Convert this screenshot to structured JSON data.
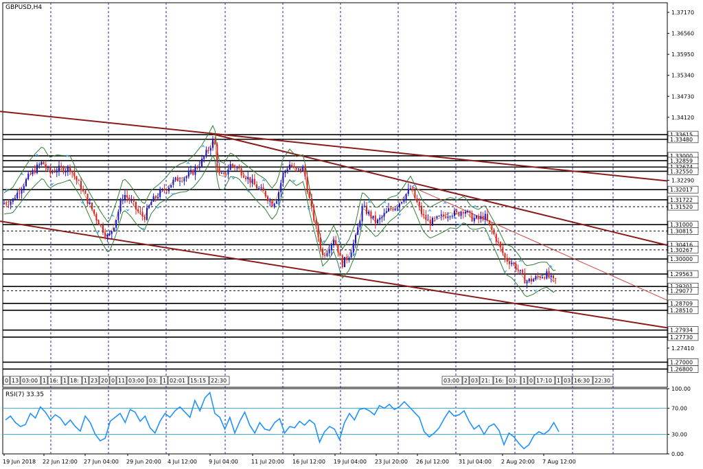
{
  "chart_data": {
    "type": "candlestick",
    "title": "GBPUSD,H4",
    "price_axis": {
      "range": [
        1.2665,
        1.3745
      ],
      "ticks": [
        "1.37170",
        "1.36560",
        "1.35950",
        "1.35340",
        "1.34730",
        "1.34120",
        "1.33480",
        "1.32290",
        "1.31722",
        "1.31520",
        "1.31000",
        "1.30815",
        "1.30416",
        "1.30267",
        "1.30000",
        "1.29563",
        "1.29201",
        "1.28709",
        "1.28510",
        "1.27934",
        "1.27730",
        "1.27410",
        "1.27000",
        "1.26800"
      ]
    },
    "x_axis_labels": [
      "19 Jun 2018",
      "22 Jun 12:00",
      "27 Jun 04:00",
      "29 Jun 20:00",
      "4 Jul 12:00",
      "9 Jul 04:00",
      "11 Jul 20:00",
      "16 Jul 12:00",
      "19 Jul 04:00",
      "23 Jul 20:00",
      "26 Jul 12:00",
      "31 Jul 04:00",
      "2 Aug 20:00",
      "7 Aug 12:00"
    ],
    "price_path": [
      [
        0,
        1.3188
      ],
      [
        4,
        1.316
      ],
      [
        10,
        1.3165
      ],
      [
        18,
        1.317
      ],
      [
        30,
        1.3205
      ],
      [
        42,
        1.324
      ],
      [
        52,
        1.3262
      ],
      [
        62,
        1.3282
      ],
      [
        72,
        1.325
      ],
      [
        82,
        1.326
      ],
      [
        92,
        1.3262
      ],
      [
        102,
        1.3265
      ],
      [
        110,
        1.3235
      ],
      [
        120,
        1.32
      ],
      [
        130,
        1.316
      ],
      [
        140,
        1.312
      ],
      [
        150,
        1.3085
      ],
      [
        158,
        1.306
      ],
      [
        168,
        1.311
      ],
      [
        180,
        1.319
      ],
      [
        190,
        1.317
      ],
      [
        200,
        1.314
      ],
      [
        210,
        1.312
      ],
      [
        220,
        1.3165
      ],
      [
        232,
        1.319
      ],
      [
        242,
        1.3205
      ],
      [
        252,
        1.3225
      ],
      [
        262,
        1.3235
      ],
      [
        272,
        1.324
      ],
      [
        282,
        1.3255
      ],
      [
        294,
        1.3285
      ],
      [
        304,
        1.332
      ],
      [
        312,
        1.3352
      ],
      [
        318,
        1.3245
      ],
      [
        326,
        1.324
      ],
      [
        336,
        1.3275
      ],
      [
        346,
        1.3265
      ],
      [
        356,
        1.3245
      ],
      [
        366,
        1.3225
      ],
      [
        376,
        1.3205
      ],
      [
        386,
        1.319
      ],
      [
        396,
        1.316
      ],
      [
        404,
        1.318
      ],
      [
        412,
        1.3245
      ],
      [
        422,
        1.3275
      ],
      [
        432,
        1.3255
      ],
      [
        442,
        1.3265
      ],
      [
        452,
        1.316
      ],
      [
        460,
        1.3095
      ],
      [
        470,
        1.301
      ],
      [
        478,
        1.303
      ],
      [
        486,
        1.306
      ],
      [
        492,
        1.303
      ],
      [
        498,
        1.2985
      ],
      [
        508,
        1.301
      ],
      [
        518,
        1.306
      ],
      [
        528,
        1.315
      ],
      [
        538,
        1.313
      ],
      [
        548,
        1.3105
      ],
      [
        558,
        1.3125
      ],
      [
        568,
        1.3145
      ],
      [
        578,
        1.3155
      ],
      [
        588,
        1.318
      ],
      [
        598,
        1.3205
      ],
      [
        606,
        1.317
      ],
      [
        616,
        1.3125
      ],
      [
        626,
        1.3105
      ],
      [
        636,
        1.3115
      ],
      [
        646,
        1.3125
      ],
      [
        656,
        1.3135
      ],
      [
        666,
        1.313
      ],
      [
        676,
        1.3145
      ],
      [
        686,
        1.312
      ],
      [
        696,
        1.3115
      ],
      [
        706,
        1.3125
      ],
      [
        716,
        1.3085
      ],
      [
        726,
        1.3045
      ],
      [
        736,
        1.3
      ],
      [
        746,
        1.299
      ],
      [
        756,
        1.2965
      ],
      [
        766,
        1.2935
      ],
      [
        776,
        1.294
      ],
      [
        786,
        1.295
      ],
      [
        796,
        1.2955
      ],
      [
        806,
        1.2935
      ],
      [
        812,
        1.294
      ]
    ],
    "horizontal_levels": [
      1.33615,
      1.3348,
      1.33,
      1.32859,
      1.32674,
      1.3255,
      1.32017,
      1.31722,
      1.3152,
      1.31,
      1.30815,
      1.30416,
      1.30267,
      1.3,
      1.29563,
      1.29201,
      1.29077,
      1.28709,
      1.2851,
      1.27934,
      1.2773,
      1.27,
      1.268
    ],
    "axis_price_labels": [
      "1.33615",
      "1.33480",
      "1.33000",
      "1.32859",
      "1.32674",
      "1.32550",
      "1.32017",
      "1.31722",
      "1.31520",
      "1.31000",
      "1.30815",
      "1.30416",
      "1.30267",
      "1.30000",
      "1.29563",
      "1.29201",
      "1.29077",
      "1.28709",
      "1.28510",
      "1.27934",
      "1.27730",
      "1.27000",
      "1.26800"
    ],
    "trendlines": [
      {
        "from": [
          0,
          1.3429
        ],
        "to": [
          972,
          1.3227
        ],
        "color": "#8b1a1a"
      },
      {
        "from": [
          0,
          1.311
        ],
        "to": [
          972,
          1.28
        ],
        "color": "#8b1a1a"
      },
      {
        "from": [
          310,
          1.3363
        ],
        "to": [
          972,
          1.304
        ],
        "color": "#8b1a1a"
      },
      {
        "from": [
          600,
          1.321
        ],
        "to": [
          972,
          1.288
        ],
        "color": "#d04040"
      }
    ],
    "time_box_labels_left": [
      "0",
      "13",
      "03:00",
      "1",
      "16:",
      "1",
      "18:",
      "1",
      "23",
      "20",
      "0",
      "11",
      "03:00",
      "03:",
      "1",
      "02:01",
      "15:15",
      "22:30"
    ],
    "time_box_labels_right": [
      "03:00",
      "2",
      "03",
      "21:",
      "16:",
      "03:",
      "1",
      "0",
      "17:10",
      "1",
      "03",
      "16:30",
      "22:30"
    ],
    "rsi": {
      "label": "RSI(7) 33.35",
      "range": [
        0,
        100
      ],
      "ticks": [
        "100.00",
        "70.00",
        "30.00",
        "0.00"
      ],
      "levels": [
        70,
        30
      ],
      "values": [
        52,
        58,
        48,
        42,
        45,
        62,
        55,
        72,
        64,
        52,
        60,
        55,
        44,
        52,
        42,
        35,
        58,
        48,
        30,
        20,
        24,
        50,
        56,
        62,
        48,
        68,
        64,
        50,
        58,
        40,
        32,
        50,
        62,
        56,
        66,
        72,
        64,
        56,
        82,
        66,
        86,
        94,
        62,
        56,
        38,
        56,
        32,
        50,
        64,
        44,
        32,
        48,
        38,
        36,
        48,
        54,
        32,
        42,
        40,
        50,
        44,
        52,
        46,
        18,
        34,
        42,
        38,
        22,
        48,
        62,
        52,
        68,
        70,
        66,
        60,
        74,
        70,
        76,
        68,
        72,
        80,
        72,
        64,
        56,
        34,
        26,
        32,
        40,
        54,
        66,
        58,
        60,
        66,
        50,
        38,
        44,
        30,
        42,
        46,
        36,
        14,
        32,
        26,
        16,
        8,
        14,
        28,
        34,
        30,
        36,
        48,
        34
      ]
    }
  }
}
